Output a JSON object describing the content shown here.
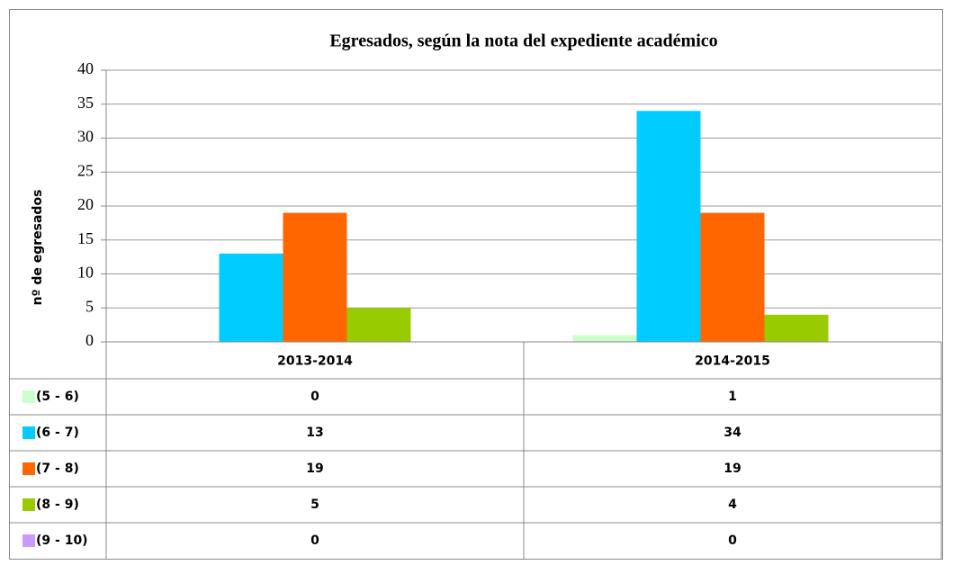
{
  "chart_data": {
    "type": "bar",
    "title": "Egresados, según la nota del expediente académico",
    "y_label": "nº de egresados",
    "categories": [
      "2013-2014",
      "2014-2015"
    ],
    "series": [
      {
        "name": "(5 - 6)",
        "color": "#ccffcc",
        "values": [
          0,
          1
        ]
      },
      {
        "name": "(6 - 7)",
        "color": "#00ccff",
        "values": [
          13,
          34
        ]
      },
      {
        "name": "(7 - 8)",
        "color": "#ff6600",
        "values": [
          19,
          19
        ]
      },
      {
        "name": "(8 - 9)",
        "color": "#99cc00",
        "values": [
          5,
          4
        ]
      },
      {
        "name": "(9 - 10)",
        "color": "#cc99ff",
        "values": [
          0,
          0
        ]
      }
    ],
    "ylim": [
      0,
      40
    ],
    "yticks": [
      0,
      5,
      10,
      15,
      20,
      25,
      30,
      35,
      40
    ],
    "grid": true,
    "data_table": true
  }
}
